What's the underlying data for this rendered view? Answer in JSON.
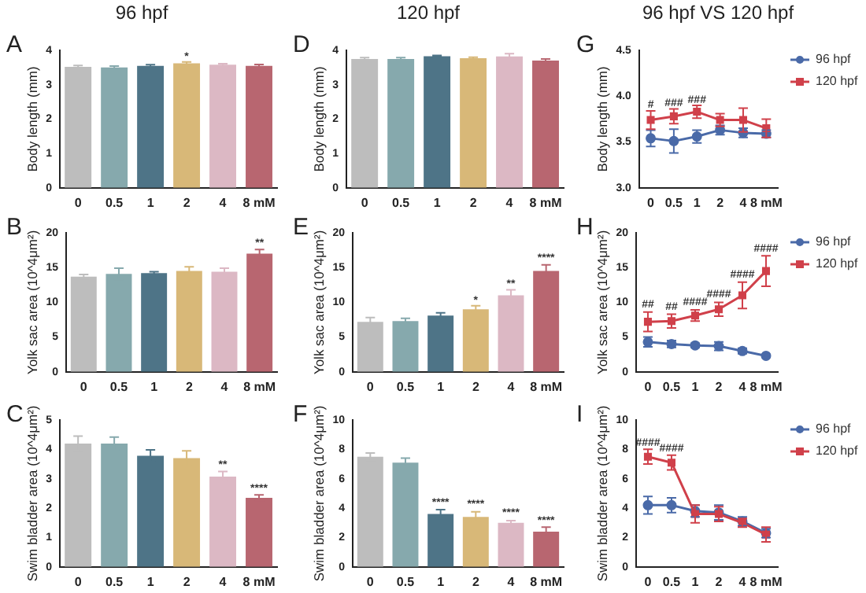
{
  "chart_data": [
    {
      "type": "bar",
      "title": "A",
      "subtitle": "96 hpf",
      "ylabel": "Body length (mm)",
      "categories": [
        "0",
        "0.5",
        "1",
        "2",
        "4",
        "8 mM"
      ],
      "ylim": [
        0,
        4
      ],
      "yticks": [
        0,
        1,
        2,
        3,
        4
      ],
      "values": [
        3.52,
        3.5,
        3.55,
        3.62,
        3.58,
        3.55
      ],
      "errors": [
        0.04,
        0.04,
        0.03,
        0.04,
        0.03,
        0.04
      ],
      "colors": [
        "#bdbdbd",
        "#86a9ad",
        "#4e7487",
        "#d8b878",
        "#dcb8c4",
        "#b86670"
      ],
      "annotations": [
        {
          "text": "*",
          "x": "2",
          "y": 3.75
        }
      ]
    },
    {
      "type": "bar",
      "title": "D",
      "subtitle": "120 hpf",
      "ylabel": "Body length (mm)",
      "categories": [
        "0",
        "0.5",
        "1",
        "2",
        "4",
        "8 mM"
      ],
      "ylim": [
        0,
        4
      ],
      "yticks": [
        0,
        1,
        2,
        3,
        4
      ],
      "values": [
        3.75,
        3.75,
        3.83,
        3.77,
        3.82,
        3.7
      ],
      "errors": [
        0.04,
        0.04,
        0.02,
        0.03,
        0.08,
        0.05
      ],
      "colors": [
        "#bdbdbd",
        "#86a9ad",
        "#4e7487",
        "#d8b878",
        "#dcb8c4",
        "#b86670"
      ]
    },
    {
      "type": "line",
      "title": "G",
      "subtitle": "96 hpf VS 120 hpf",
      "ylabel": "Body length (mm)",
      "categories": [
        "0",
        "0.5",
        "1",
        "2",
        "4",
        "8 mM"
      ],
      "ylim": [
        3,
        4.5
      ],
      "yticks": [
        {
          "value": 3,
          "label": "3.0"
        },
        {
          "value": 3.5,
          "label": "3.5"
        },
        {
          "value": 4,
          "label": "4.0"
        },
        {
          "value": 4.5,
          "label": "4.5"
        }
      ],
      "legend": "right",
      "series": [
        {
          "name": "96 hpf",
          "color": "#4a6aa8",
          "marker": "circle",
          "values": [
            3.54,
            3.51,
            3.56,
            3.63,
            3.6,
            3.59
          ],
          "errors": [
            0.09,
            0.13,
            0.07,
            0.05,
            0.05,
            0.04
          ]
        },
        {
          "name": "120 hpf",
          "color": "#d0404a",
          "marker": "square",
          "values": [
            3.74,
            3.78,
            3.83,
            3.74,
            3.74,
            3.65
          ],
          "errors": [
            0.1,
            0.08,
            0.07,
            0.07,
            0.13,
            0.1
          ]
        }
      ],
      "annotations": [
        {
          "text": "#",
          "x": "0",
          "y": 3.88
        },
        {
          "text": "###",
          "x": "0.5",
          "y": 3.9
        },
        {
          "text": "###",
          "x": "1",
          "y": 3.93
        }
      ]
    },
    {
      "type": "bar",
      "title": "B",
      "ylabel": "Yolk sac area (10^4μm²)",
      "categories": [
        "0",
        "0.5",
        "1",
        "2",
        "4",
        "8 mM"
      ],
      "ylim": [
        0,
        20
      ],
      "yticks": [
        0,
        5,
        10,
        15,
        20
      ],
      "values": [
        13.7,
        14.1,
        14.2,
        14.5,
        14.4,
        17.0
      ],
      "errors": [
        0.3,
        0.8,
        0.2,
        0.6,
        0.5,
        0.6
      ],
      "colors": [
        "#bdbdbd",
        "#86a9ad",
        "#4e7487",
        "#d8b878",
        "#dcb8c4",
        "#b86670"
      ],
      "annotations": [
        {
          "text": "**",
          "x": "8 mM",
          "y": 18.2
        }
      ]
    },
    {
      "type": "bar",
      "title": "E",
      "ylabel": "Yolk sac area (10^4μm²)",
      "categories": [
        "0",
        "0.5",
        "1",
        "2",
        "4",
        "8 mM"
      ],
      "ylim": [
        0,
        20
      ],
      "yticks": [
        0,
        5,
        10,
        15,
        20
      ],
      "values": [
        7.2,
        7.3,
        8.1,
        9.0,
        11.0,
        14.5
      ],
      "errors": [
        0.6,
        0.4,
        0.4,
        0.5,
        0.8,
        0.9
      ],
      "colors": [
        "#bdbdbd",
        "#86a9ad",
        "#4e7487",
        "#d8b878",
        "#dcb8c4",
        "#b86670"
      ],
      "annotations": [
        {
          "text": "*",
          "x": "2",
          "y": 9.9
        },
        {
          "text": "**",
          "x": "4",
          "y": 12.3
        },
        {
          "text": "****",
          "x": "8 mM",
          "y": 16
        }
      ]
    },
    {
      "type": "line",
      "title": "H",
      "ylabel": "Yolk sac area (10^4μm²)",
      "categories": [
        "0",
        "0.5",
        "1",
        "2",
        "4",
        "8 mM"
      ],
      "ylim": [
        0,
        20
      ],
      "yticks": [
        0,
        5,
        10,
        15,
        20
      ],
      "legend": "right",
      "series": [
        {
          "name": "96 hpf",
          "color": "#4a6aa8",
          "marker": "circle",
          "values": [
            4.3,
            4.0,
            3.8,
            3.7,
            3.0,
            2.3
          ],
          "errors": [
            0.7,
            0.5,
            0.3,
            0.6,
            0.4,
            0.2
          ]
        },
        {
          "name": "120 hpf",
          "color": "#d0404a",
          "marker": "square",
          "values": [
            7.2,
            7.3,
            8.1,
            9.0,
            11.0,
            14.5
          ],
          "errors": [
            1.4,
            1.0,
            0.8,
            1.0,
            1.9,
            2.2
          ]
        }
      ],
      "annotations": [
        {
          "text": "##",
          "x": "0",
          "y": 9.3
        },
        {
          "text": "##",
          "x": "0.5",
          "y": 9.0
        },
        {
          "text": "####",
          "x": "1",
          "y": 9.7
        },
        {
          "text": "####",
          "x": "2",
          "y": 10.8
        },
        {
          "text": "####",
          "x": "4",
          "y": 13.6
        },
        {
          "text": "####",
          "x": "8 mM",
          "y": 17.4
        }
      ]
    },
    {
      "type": "bar",
      "title": "C",
      "ylabel": "Swim bladder area (10^4μm²)",
      "categories": [
        "0",
        "0.5",
        "1",
        "2",
        "4",
        "8 mM"
      ],
      "ylim": [
        0,
        5
      ],
      "yticks": [
        0,
        1,
        2,
        3,
        4,
        5
      ],
      "values": [
        4.2,
        4.2,
        3.78,
        3.7,
        3.07,
        2.35
      ],
      "errors": [
        0.25,
        0.22,
        0.2,
        0.25,
        0.18,
        0.1
      ],
      "colors": [
        "#bdbdbd",
        "#86a9ad",
        "#4e7487",
        "#d8b878",
        "#dcb8c4",
        "#b86670"
      ],
      "annotations": [
        {
          "text": "**",
          "x": "4",
          "y": 3.4
        },
        {
          "text": "****",
          "x": "8 mM",
          "y": 2.6
        }
      ]
    },
    {
      "type": "bar",
      "title": "F",
      "ylabel": "Swim bladder area (10^4μm²)",
      "categories": [
        "0",
        "0.5",
        "1",
        "2",
        "4",
        "8 mM"
      ],
      "ylim": [
        0,
        10
      ],
      "yticks": [
        0,
        2,
        4,
        6,
        8,
        10
      ],
      "values": [
        7.5,
        7.1,
        3.6,
        3.4,
        3.0,
        2.4
      ],
      "errors": [
        0.25,
        0.3,
        0.3,
        0.35,
        0.15,
        0.3
      ],
      "colors": [
        "#bdbdbd",
        "#86a9ad",
        "#4e7487",
        "#d8b878",
        "#dcb8c4",
        "#b86670"
      ],
      "annotations": [
        {
          "text": "****",
          "x": "1",
          "y": 4.2
        },
        {
          "text": "****",
          "x": "2",
          "y": 4.1
        },
        {
          "text": "****",
          "x": "4",
          "y": 3.5
        },
        {
          "text": "****",
          "x": "8 mM",
          "y": 3.0
        }
      ]
    },
    {
      "type": "line",
      "title": "I",
      "ylabel": "Swim bladder area (10^4μm²)",
      "categories": [
        "0",
        "0.5",
        "1",
        "2",
        "4",
        "8 mM"
      ],
      "ylim": [
        0,
        10
      ],
      "yticks": [
        0,
        2,
        4,
        6,
        8,
        10
      ],
      "legend": "right",
      "series": [
        {
          "name": "96 hpf",
          "color": "#4a6aa8",
          "marker": "circle",
          "values": [
            4.2,
            4.2,
            3.8,
            3.7,
            3.1,
            2.3
          ],
          "errors": [
            0.6,
            0.5,
            0.4,
            0.5,
            0.3,
            0.3
          ]
        },
        {
          "name": "120 hpf",
          "color": "#d0404a",
          "marker": "square",
          "values": [
            7.5,
            7.1,
            3.6,
            3.6,
            3.0,
            2.2
          ],
          "errors": [
            0.5,
            0.5,
            0.6,
            0.5,
            0.3,
            0.5
          ]
        }
      ],
      "annotations": [
        {
          "text": "####",
          "x": "0",
          "y": 8.3
        },
        {
          "text": "####",
          "x": "0.5",
          "y": 7.9
        }
      ]
    }
  ]
}
